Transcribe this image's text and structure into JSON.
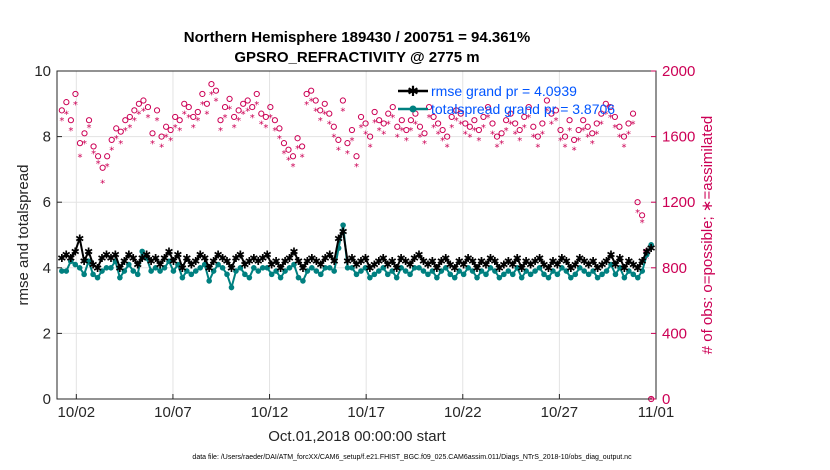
{
  "chart_data": {
    "type": "line",
    "title": "Northern Hemisphere 189430 / 200751 = 94.361%",
    "subtitle": "GPSRO_REFRACTIVITY @ 2775 m",
    "xlabel": "Oct.01,2018 00:00:00 start",
    "ylabel_left": "rmse and totalspread",
    "ylabel_right": "# of obs: o=possible; ∗=assimilated",
    "xlim": [
      0.5,
      31.5
    ],
    "ylim_left": [
      0,
      10
    ],
    "ylim_right": [
      0,
      2000
    ],
    "x_ticks": [
      1.5,
      6.5,
      11.5,
      16.5,
      21.5,
      26.5,
      31.5
    ],
    "x_tick_labels": [
      "10/02",
      "10/07",
      "10/12",
      "10/17",
      "10/22",
      "10/27",
      "11/01"
    ],
    "y_left_ticks": [
      0,
      2,
      4,
      6,
      8,
      10
    ],
    "y_left_tick_labels": [
      "0",
      "2",
      "4",
      "6",
      "8",
      "10"
    ],
    "y_right_ticks": [
      0,
      400,
      800,
      1200,
      1600,
      2000
    ],
    "y_right_tick_labels": [
      "0",
      "400",
      "800",
      "1200",
      "1600",
      "2000"
    ],
    "grid": true,
    "legend": "top-right",
    "colors": {
      "rmse": "#000000",
      "spread": "#008080",
      "obs": "#cc0055",
      "legend_text": "#0055ff"
    },
    "series": [
      {
        "name": "rmse",
        "label": "rmse grand pr = 4.0939",
        "values": [
          4.3,
          4.4,
          4.3,
          4.5,
          4.9,
          4.2,
          4.5,
          4.1,
          4.0,
          4.3,
          4.4,
          4.3,
          4.4,
          4.0,
          4.2,
          4.4,
          4.3,
          4.1,
          4.3,
          4.4,
          4.2,
          4.3,
          4.1,
          4.3,
          4.5,
          4.2,
          4.4,
          4.0,
          4.3,
          4.1,
          4.2,
          4.4,
          4.3,
          4.0,
          4.2,
          4.4,
          4.3,
          4.2,
          4.0,
          4.3,
          4.4,
          4.1,
          4.2,
          4.3,
          4.2,
          4.3,
          4.4,
          4.1,
          4.2,
          4.0,
          4.2,
          4.3,
          4.5,
          4.2,
          4.0,
          4.2,
          4.3,
          4.2,
          4.1,
          4.3,
          4.4,
          4.2,
          4.9,
          5.1,
          4.2,
          4.3,
          4.1,
          4.2,
          4.3,
          4.0,
          4.1,
          4.2,
          4.3,
          4.1,
          4.2,
          4.0,
          4.3,
          4.2,
          4.1,
          4.3,
          4.4,
          4.2,
          4.1,
          4.2,
          4.0,
          4.2,
          4.3,
          4.1,
          4.0,
          4.2,
          4.1,
          4.3,
          4.2,
          4.0,
          4.2,
          4.1,
          4.3,
          4.2,
          4.0,
          4.1,
          4.2,
          4.1,
          4.3,
          4.0,
          4.2,
          4.1,
          4.2,
          4.3,
          4.1,
          4.0,
          4.2,
          4.1,
          4.3,
          4.2,
          4.0,
          4.1,
          4.3,
          4.2,
          4.1,
          4.2,
          4.0,
          4.1,
          4.2,
          4.4,
          4.1,
          4.3,
          4.0,
          4.2,
          4.1,
          4.0,
          4.2,
          4.5,
          4.6
        ]
      },
      {
        "name": "totalspread",
        "label": "totalspread grand pr = 3.8706",
        "values": [
          3.9,
          3.9,
          4.2,
          4.1,
          4.0,
          3.8,
          4.2,
          3.8,
          3.7,
          3.9,
          4.0,
          4.0,
          4.2,
          3.7,
          3.9,
          4.1,
          3.9,
          3.8,
          4.5,
          4.3,
          3.9,
          4.0,
          3.9,
          4.0,
          4.2,
          3.9,
          4.1,
          3.7,
          3.9,
          3.8,
          3.9,
          4.0,
          4.1,
          3.6,
          3.9,
          4.1,
          4.0,
          3.8,
          3.4,
          3.9,
          4.0,
          3.8,
          3.7,
          4.0,
          3.9,
          4.0,
          4.0,
          3.8,
          3.9,
          3.7,
          3.9,
          4.0,
          4.1,
          3.7,
          3.6,
          3.9,
          4.0,
          3.9,
          3.8,
          4.0,
          4.0,
          3.9,
          4.6,
          5.3,
          4.0,
          4.0,
          3.8,
          3.9,
          4.0,
          3.7,
          3.8,
          3.9,
          4.0,
          3.8,
          3.9,
          3.7,
          4.0,
          3.9,
          3.8,
          4.0,
          4.0,
          3.9,
          3.8,
          3.9,
          3.7,
          3.9,
          4.0,
          3.8,
          3.7,
          3.9,
          3.8,
          4.0,
          3.9,
          3.7,
          3.9,
          3.8,
          4.0,
          3.9,
          3.7,
          3.8,
          3.9,
          3.8,
          4.0,
          3.7,
          3.9,
          3.8,
          3.9,
          4.0,
          3.8,
          3.7,
          3.9,
          3.8,
          4.0,
          3.9,
          3.7,
          3.8,
          4.0,
          3.9,
          3.8,
          3.9,
          3.7,
          3.8,
          3.9,
          4.1,
          3.8,
          4.0,
          3.7,
          3.9,
          3.8,
          3.7,
          3.9,
          4.4,
          4.7
        ]
      },
      {
        "name": "obs_possible",
        "values": [
          1760,
          1810,
          1700,
          1860,
          1560,
          1620,
          1700,
          1540,
          1480,
          1410,
          1480,
          1580,
          1650,
          1630,
          1700,
          1720,
          1760,
          1800,
          1820,
          1780,
          1620,
          1760,
          1600,
          1660,
          1640,
          1720,
          1700,
          1800,
          1780,
          1720,
          1750,
          1860,
          1800,
          1920,
          1880,
          1700,
          1780,
          1830,
          1720,
          1760,
          1800,
          1820,
          1780,
          1860,
          1740,
          1720,
          1780,
          1700,
          1650,
          1560,
          1520,
          1480,
          1590,
          1540,
          1860,
          1880,
          1820,
          1760,
          1800,
          1740,
          1660,
          1580,
          1820,
          1560,
          1640,
          1480,
          1720,
          1680,
          1600,
          1750,
          1700,
          1680,
          1740,
          1780,
          1660,
          1700,
          1640,
          1700,
          1740,
          1660,
          1620,
          1780,
          1720,
          1680,
          1640,
          1600,
          1720,
          1760,
          1740,
          1680,
          1660,
          1700,
          1640,
          1720,
          1780,
          1680,
          1600,
          1620,
          1700,
          1740,
          1680,
          1640,
          1720,
          1780,
          1660,
          1600,
          1680,
          1820,
          1740,
          1760,
          1640,
          1600,
          1700,
          1580,
          1640,
          1700,
          1660,
          1620,
          1680,
          1740,
          1800,
          1780,
          1720,
          1660,
          1600,
          1680,
          1740,
          1200,
          1120,
          900,
          0
        ]
      },
      {
        "name": "obs_assimilated",
        "values": [
          1700,
          1740,
          1640,
          1800,
          1480,
          1560,
          1660,
          1500,
          1440,
          1320,
          1420,
          1520,
          1590,
          1560,
          1640,
          1660,
          1700,
          1740,
          1760,
          1720,
          1560,
          1700,
          1540,
          1600,
          1580,
          1660,
          1640,
          1740,
          1720,
          1660,
          1700,
          1800,
          1740,
          1860,
          1820,
          1640,
          1720,
          1770,
          1660,
          1700,
          1740,
          1760,
          1720,
          1800,
          1680,
          1660,
          1720,
          1640,
          1590,
          1500,
          1460,
          1420,
          1530,
          1480,
          1800,
          1820,
          1760,
          1700,
          1740,
          1680,
          1600,
          1520,
          1760,
          1500,
          1580,
          1420,
          1660,
          1620,
          1540,
          1690,
          1640,
          1620,
          1680,
          1720,
          1600,
          1640,
          1580,
          1640,
          1680,
          1600,
          1560,
          1720,
          1660,
          1620,
          1580,
          1540,
          1660,
          1700,
          1680,
          1620,
          1600,
          1640,
          1580,
          1660,
          1720,
          1620,
          1540,
          1560,
          1640,
          1680,
          1620,
          1580,
          1660,
          1720,
          1600,
          1540,
          1620,
          1760,
          1680,
          1700,
          1580,
          1540,
          1640,
          1520,
          1580,
          1640,
          1600,
          1560,
          1620,
          1680,
          1740,
          1720,
          1660,
          1600,
          1540,
          1620,
          1680,
          1140,
          1080,
          860,
          0
        ]
      }
    ],
    "footer": "data file: /Users/raeder/DAI/ATM_forcXX/CAM6_setup/f.e21.FHIST_BGC.f09_025.CAM6assim.011/Diags_NTrS_2018-10/obs_diag_output.nc"
  }
}
